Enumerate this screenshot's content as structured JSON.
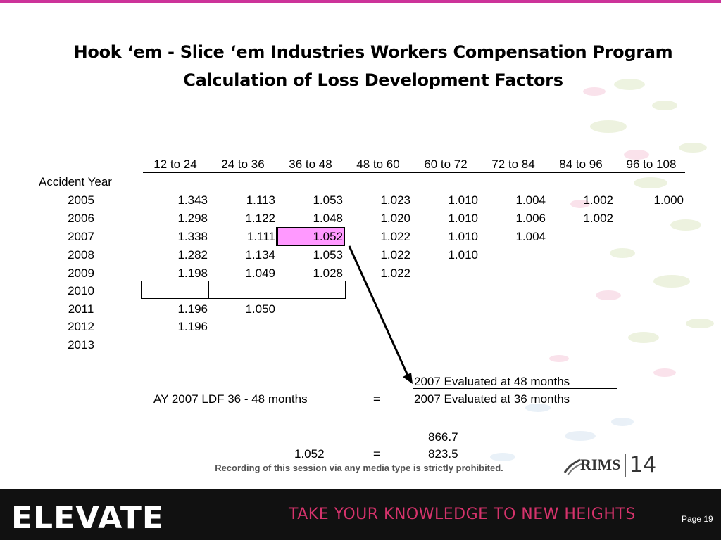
{
  "title_line1": "Hook ‘em - Slice ‘em Industries Workers  Compensation Program",
  "title_line2": "Calculation of Loss Development Factors",
  "table": {
    "row_label_header": "Accident Year",
    "columns": [
      "12 to 24",
      "24 to 36",
      "36 to 48",
      "48 to 60",
      "60 to 72",
      "72 to 84",
      "84 to 96",
      "96 to 108"
    ],
    "rows": [
      {
        "year": "2005",
        "values": [
          "1.343",
          "1.113",
          "1.053",
          "1.023",
          "1.010",
          "1.004",
          "1.002",
          "1.000"
        ]
      },
      {
        "year": "2006",
        "values": [
          "1.298",
          "1.122",
          "1.048",
          "1.020",
          "1.010",
          "1.006",
          "1.002"
        ]
      },
      {
        "year": "2007",
        "values": [
          "1.338",
          "1.111",
          "1.052",
          "1.022",
          "1.010",
          "1.004"
        ]
      },
      {
        "year": "2008",
        "values": [
          "1.282",
          "1.134",
          "1.053",
          "1.022",
          "1.010"
        ]
      },
      {
        "year": "2009",
        "values": [
          "1.198",
          "1.049",
          "1.028",
          "1.022"
        ]
      },
      {
        "year": "2010",
        "values": []
      },
      {
        "year": "2011",
        "values": [
          "1.196",
          "1.050"
        ]
      },
      {
        "year": "2012",
        "values": [
          "1.196"
        ]
      },
      {
        "year": "2013",
        "values": []
      }
    ],
    "highlight_color": "#ff99ff"
  },
  "formula": {
    "numerator_label": "2007 Evaluated at 48 months",
    "denominator_label": "2007 Evaluated at 36 months",
    "lhs_label": "AY 2007 LDF 36 - 48 months",
    "equals": "=",
    "numerator_value": "866.7",
    "denominator_value": "823.5",
    "result": "1.052"
  },
  "notice": "Recording of this session via any media type is strictly prohibited.",
  "footer": {
    "brand": "ELEVATE",
    "tagline": "TAKE YOUR KNOWLEDGE TO NEW HEIGHTS",
    "page": "Page 19",
    "accent_color": "#d6336c"
  },
  "rims_logo": {
    "text": "RIMS",
    "number": "14"
  }
}
